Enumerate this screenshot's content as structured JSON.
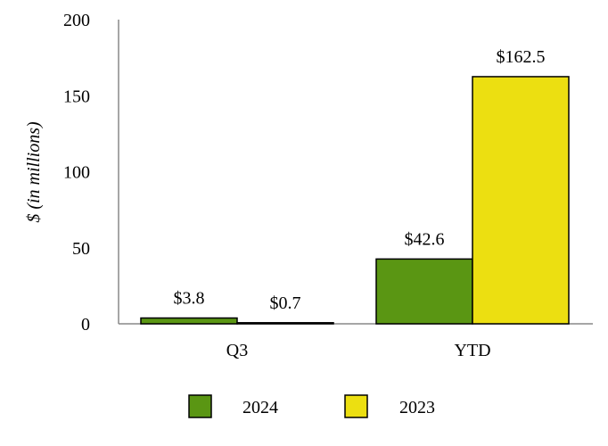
{
  "chart_data": {
    "type": "bar",
    "categories": [
      "Q3",
      "YTD"
    ],
    "series": [
      {
        "name": "2024",
        "color": "#5a9613",
        "values": [
          3.8,
          42.6
        ],
        "labels": [
          "$3.8",
          "$42.6"
        ]
      },
      {
        "name": "2023",
        "color": "#ecdf11",
        "values": [
          0.7,
          162.5
        ],
        "labels": [
          "$0.7",
          "$162.5"
        ]
      }
    ],
    "ylabel": "$ (in millions)",
    "xlabel": "",
    "ylim": [
      0,
      200
    ],
    "yticks": [
      "0",
      "50",
      "100",
      "150",
      "200"
    ],
    "grid": false,
    "legend_position": "bottom-center"
  }
}
